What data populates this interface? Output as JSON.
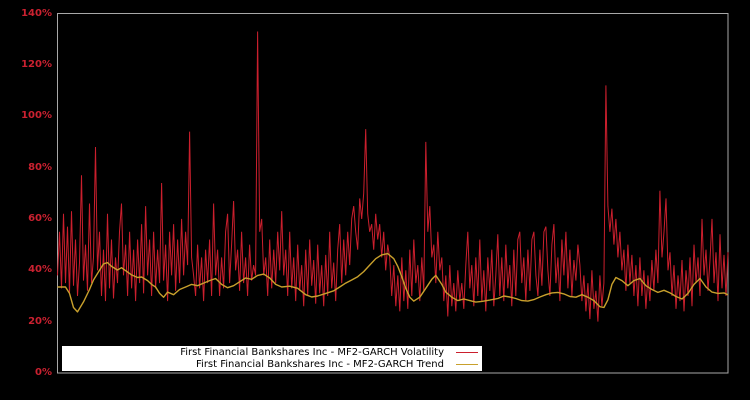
{
  "figure": {
    "background": "#000000",
    "plot_border_color": "#a8a8a8"
  },
  "y_axis": {
    "color": "#cb2130",
    "tick_values": [
      0,
      20,
      40,
      60,
      80,
      100,
      120,
      140
    ],
    "tick_labels": [
      "0%",
      "20%",
      "40%",
      "60%",
      "80%",
      "100%",
      "120%",
      "140%"
    ]
  },
  "legend": {
    "background": "#ffffff",
    "text_color": "#000000",
    "entries": [
      {
        "label": "First Financial Bankshares Inc - MF2-GARCH Volatility",
        "color": "#cb1f2d"
      },
      {
        "label": "First Financial Bankshares Inc - MF2-GARCH Trend",
        "color": "#c8a02c"
      }
    ]
  },
  "chart_data": {
    "type": "line",
    "title": "",
    "xlabel": "",
    "ylabel": "",
    "y_unit": "%",
    "ylim": [
      0,
      140
    ],
    "grid": false,
    "legend_position": "lower-left-inside",
    "x_tick_labels": [],
    "series": [
      {
        "name": "First Financial Bankshares Inc - MF2-GARCH Volatility",
        "color": "#cb1f2d",
        "values": [
          38,
          55,
          33,
          62,
          35,
          57,
          31,
          63,
          34,
          52,
          30,
          43,
          77,
          36,
          50,
          32,
          66,
          35,
          45,
          88,
          40,
          55,
          30,
          48,
          28,
          62,
          33,
          52,
          29,
          45,
          35,
          55,
          66,
          38,
          50,
          30,
          55,
          33,
          48,
          28,
          52,
          35,
          58,
          31,
          65,
          38,
          52,
          30,
          55,
          33,
          48,
          35,
          74,
          36,
          50,
          28,
          55,
          38,
          58,
          32,
          52,
          35,
          60,
          38,
          55,
          42,
          94,
          45,
          38,
          30,
          50,
          33,
          45,
          28,
          48,
          35,
          52,
          30,
          66,
          38,
          48,
          30,
          45,
          33,
          55,
          62,
          35,
          50,
          67,
          40,
          48,
          32,
          55,
          35,
          45,
          30,
          50,
          36,
          42,
          38,
          133,
          55,
          60,
          38,
          45,
          30,
          52,
          33,
          48,
          35,
          55,
          40,
          63,
          38,
          48,
          30,
          55,
          33,
          45,
          28,
          50,
          32,
          42,
          26,
          48,
          30,
          52,
          34,
          44,
          27,
          50,
          31,
          42,
          26,
          46,
          30,
          55,
          33,
          43,
          28,
          48,
          58,
          35,
          52,
          38,
          55,
          42,
          60,
          65,
          55,
          48,
          68,
          60,
          70,
          95,
          62,
          55,
          58,
          48,
          62,
          52,
          58,
          45,
          55,
          40,
          50,
          45,
          30,
          42,
          26,
          38,
          24,
          45,
          28,
          40,
          25,
          48,
          30,
          52,
          35,
          42,
          28,
          45,
          32,
          90,
          55,
          65,
          45,
          50,
          35,
          55,
          40,
          45,
          28,
          38,
          22,
          42,
          26,
          35,
          24,
          40,
          28,
          35,
          25,
          42,
          55,
          33,
          42,
          26,
          45,
          30,
          52,
          28,
          40,
          24,
          45,
          32,
          48,
          26,
          38,
          54,
          30,
          45,
          28,
          50,
          33,
          42,
          26,
          48,
          30,
          52,
          55,
          35,
          45,
          28,
          48,
          32,
          52,
          55,
          38,
          30,
          48,
          34,
          55,
          57,
          40,
          30,
          50,
          58,
          35,
          45,
          28,
          52,
          38,
          55,
          33,
          48,
          30,
          44,
          36,
          50,
          42,
          28,
          38,
          24,
          35,
          21,
          40,
          25,
          32,
          20,
          38,
          26,
          35,
          112,
          65,
          55,
          64,
          50,
          60,
          45,
          55,
          40,
          48,
          32,
          50,
          35,
          46,
          30,
          42,
          26,
          45,
          30,
          40,
          25,
          38,
          28,
          44,
          32,
          48,
          35,
          71,
          45,
          55,
          68,
          40,
          47,
          30,
          42,
          25,
          38,
          28,
          44,
          24,
          40,
          30,
          45,
          26,
          50,
          35,
          45,
          30,
          60,
          38,
          48,
          32,
          44,
          60,
          35,
          47,
          28,
          54,
          33,
          46,
          30,
          47
        ]
      },
      {
        "name": "First Financial Bankshares Inc - MF2-GARCH Trend",
        "color": "#c8a02c",
        "points": [
          [
            0,
            33.5
          ],
          [
            4,
            33.5
          ],
          [
            6,
            31
          ],
          [
            8,
            25.5
          ],
          [
            10,
            23.8
          ],
          [
            13,
            27.7
          ],
          [
            16,
            32.5
          ],
          [
            18,
            36.2
          ],
          [
            21,
            40
          ],
          [
            23,
            42.5
          ],
          [
            25,
            43
          ],
          [
            27,
            41.5
          ],
          [
            30,
            40.1
          ],
          [
            32,
            41
          ],
          [
            35,
            39.3
          ],
          [
            37,
            38.2
          ],
          [
            40,
            37.2
          ],
          [
            42,
            37.4
          ],
          [
            45,
            36
          ],
          [
            47,
            34.5
          ],
          [
            49,
            33.5
          ],
          [
            51,
            31
          ],
          [
            53,
            29.5
          ],
          [
            55,
            31.5
          ],
          [
            58,
            30.5
          ],
          [
            61,
            32.5
          ],
          [
            64,
            33.5
          ],
          [
            67,
            34.5
          ],
          [
            70,
            34
          ],
          [
            73,
            35
          ],
          [
            76,
            36
          ],
          [
            79,
            36.8
          ],
          [
            82,
            34.5
          ],
          [
            85,
            33.2
          ],
          [
            88,
            34
          ],
          [
            91,
            35.5
          ],
          [
            94,
            37
          ],
          [
            97,
            36.5
          ],
          [
            100,
            38
          ],
          [
            103,
            38.5
          ],
          [
            106,
            37
          ],
          [
            109,
            34.5
          ],
          [
            112,
            33.5
          ],
          [
            116,
            33.8
          ],
          [
            120,
            33
          ],
          [
            124,
            30.5
          ],
          [
            127,
            29.6
          ],
          [
            130,
            30
          ],
          [
            134,
            31
          ],
          [
            138,
            32
          ],
          [
            141,
            33.5
          ],
          [
            144,
            35
          ],
          [
            147,
            36.2
          ],
          [
            150,
            37.5
          ],
          [
            153,
            39.5
          ],
          [
            156,
            42
          ],
          [
            159,
            44.5
          ],
          [
            162,
            46
          ],
          [
            165,
            46.5
          ],
          [
            168,
            44.5
          ],
          [
            170,
            41.5
          ],
          [
            172,
            37.5
          ],
          [
            174,
            33
          ],
          [
            176,
            29.5
          ],
          [
            178,
            28
          ],
          [
            181,
            29.5
          ],
          [
            184,
            33
          ],
          [
            187,
            36.5
          ],
          [
            189,
            38
          ],
          [
            192,
            34.5
          ],
          [
            194,
            31.5
          ],
          [
            197,
            29.5
          ],
          [
            200,
            28.2
          ],
          [
            203,
            28.8
          ],
          [
            206,
            28.2
          ],
          [
            209,
            27.6
          ],
          [
            212,
            27.9
          ],
          [
            216,
            28.4
          ],
          [
            220,
            29
          ],
          [
            223,
            30
          ],
          [
            226,
            29.6
          ],
          [
            229,
            29
          ],
          [
            232,
            28.2
          ],
          [
            235,
            28
          ],
          [
            238,
            28.6
          ],
          [
            241,
            29.6
          ],
          [
            244,
            30.5
          ],
          [
            247,
            31.2
          ],
          [
            250,
            31.4
          ],
          [
            253,
            30.8
          ],
          [
            256,
            29.8
          ],
          [
            259,
            29.5
          ],
          [
            262,
            30.5
          ],
          [
            265,
            29.5
          ],
          [
            268,
            28.2
          ],
          [
            271,
            25.8
          ],
          [
            273,
            25.5
          ],
          [
            275,
            28.5
          ],
          [
            277,
            34.5
          ],
          [
            279,
            37.2
          ],
          [
            282,
            36
          ],
          [
            285,
            34
          ],
          [
            288,
            36
          ],
          [
            291,
            36.8
          ],
          [
            294,
            34
          ],
          [
            297,
            32.5
          ],
          [
            300,
            31.4
          ],
          [
            303,
            32.2
          ],
          [
            306,
            31.2
          ],
          [
            309,
            29.8
          ],
          [
            312,
            28.8
          ],
          [
            315,
            31
          ],
          [
            318,
            34.5
          ],
          [
            321,
            36.8
          ],
          [
            324,
            33.5
          ],
          [
            327,
            31.5
          ],
          [
            330,
            31
          ],
          [
            333,
            31.2
          ],
          [
            335,
            30.4
          ]
        ]
      }
    ]
  }
}
